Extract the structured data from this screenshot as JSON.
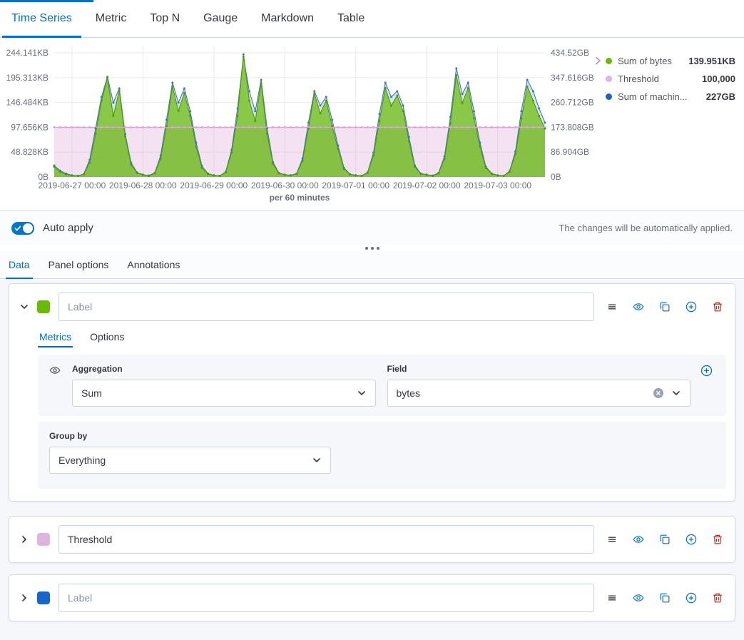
{
  "top_tabs": {
    "items": [
      {
        "label": "Time Series",
        "active": true
      },
      {
        "label": "Metric"
      },
      {
        "label": "Top N"
      },
      {
        "label": "Gauge"
      },
      {
        "label": "Markdown"
      },
      {
        "label": "Table"
      }
    ]
  },
  "chart_data": {
    "type": "area",
    "caption": "per 60 minutes",
    "x_axis": {
      "start_hours": -6,
      "step_hours": 2,
      "domain_hours": [
        -6,
        160
      ],
      "tick_hours": [
        0,
        24,
        48,
        72,
        96,
        120,
        144
      ],
      "tick_labels": [
        "2019-06-27 00:00",
        "2019-06-28 00:00",
        "2019-06-29 00:00",
        "2019-06-30 00:00",
        "2019-07-01 00:00",
        "2019-07-02 00:00",
        "2019-07-03 00:00"
      ]
    },
    "y_left": {
      "unit": "bytes",
      "max_kb": 256.8,
      "tick_values_kb": [
        0,
        48.828,
        97.656,
        146.484,
        195.313,
        244.141
      ],
      "tick_labels": [
        "0B",
        "48.828KB",
        "97.656KB",
        "146.484KB",
        "195.313KB",
        "244.141KB"
      ]
    },
    "y_right": {
      "unit": "bytes",
      "max_gb": 457,
      "tick_values_gb": [
        0,
        86.904,
        173.808,
        260.712,
        347.616,
        434.52
      ],
      "tick_labels": [
        "0B",
        "86.904GB",
        "173.808GB",
        "260.712GB",
        "347.616GB",
        "434.52GB"
      ]
    },
    "series": [
      {
        "name": "Sum of bytes",
        "axis": "left",
        "chart_color": "#68BC00",
        "line_color": "#4F9B00",
        "fill_opacity": 0.7,
        "values_kb": [
          20,
          10,
          5,
          3,
          2,
          5,
          28,
          85,
          150,
          195,
          120,
          170,
          80,
          24,
          8,
          4,
          2,
          7,
          36,
          100,
          178,
          130,
          165,
          120,
          60,
          18,
          6,
          3,
          2,
          9,
          48,
          120,
          241,
          150,
          110,
          185,
          85,
          26,
          7,
          4,
          3,
          6,
          32,
          95,
          164,
          125,
          150,
          100,
          55,
          16,
          5,
          3,
          2,
          8,
          42,
          110,
          175,
          140,
          160,
          130,
          70,
          20,
          6,
          4,
          2,
          7,
          36,
          105,
          200,
          145,
          175,
          115,
          60,
          18,
          6,
          3,
          2,
          10,
          45,
          115,
          178,
          150,
          120,
          95
        ]
      },
      {
        "name": "Threshold",
        "axis": "left",
        "type": "threshold",
        "chart_color": "#DCA4DA",
        "fill_opacity": 0.32,
        "value_kb": 97.656,
        "display_value": "100,000"
      },
      {
        "name": "Sum of machin...",
        "axis": "right",
        "chart_color": "#4A7FD4",
        "line_color": "#3E74C9",
        "fill_opacity": 0.22,
        "values_gb": [
          40,
          22,
          12,
          6,
          4,
          10,
          60,
          170,
          280,
          350,
          260,
          310,
          150,
          50,
          16,
          8,
          5,
          14,
          75,
          200,
          330,
          260,
          310,
          230,
          120,
          38,
          12,
          6,
          4,
          18,
          95,
          240,
          420,
          300,
          230,
          340,
          170,
          52,
          14,
          8,
          6,
          12,
          65,
          190,
          300,
          250,
          280,
          200,
          110,
          32,
          10,
          6,
          4,
          16,
          85,
          220,
          330,
          280,
          300,
          250,
          140,
          40,
          12,
          8,
          5,
          14,
          72,
          210,
          380,
          290,
          330,
          230,
          120,
          36,
          12,
          6,
          4,
          20,
          90,
          230,
          340,
          300,
          240,
          190
        ]
      }
    ]
  },
  "legend": {
    "items": [
      {
        "label": "Sum of bytes",
        "value": "139.951KB",
        "color": "#68BC00"
      },
      {
        "label": "Threshold",
        "value": "100,000",
        "color": "#E0B4E0"
      },
      {
        "label": "Sum of machin...",
        "value": "227GB",
        "color": "#1565CC"
      }
    ]
  },
  "auto_apply": {
    "label": "Auto apply",
    "enabled": true,
    "hint": "The changes will be automatically applied."
  },
  "editor_tabs": {
    "items": [
      {
        "label": "Data",
        "active": true
      },
      {
        "label": "Panel options"
      },
      {
        "label": "Annotations"
      }
    ]
  },
  "series_editors": [
    {
      "color": "#68BC00",
      "label_value": "",
      "label_placeholder": "Label",
      "expanded": true,
      "tabs": [
        {
          "label": "Metrics",
          "active": true
        },
        {
          "label": "Options"
        }
      ],
      "metric_row": {
        "aggregation_label": "Aggregation",
        "aggregation_value": "Sum",
        "field_label": "Field",
        "field_value": "bytes"
      },
      "group_by": {
        "label": "Group by",
        "value": "Everything"
      }
    },
    {
      "color": "#E0B4E0",
      "label_value": "Threshold",
      "label_placeholder": "Label",
      "expanded": false
    },
    {
      "color": "#1565CC",
      "label_value": "",
      "label_placeholder": "Label",
      "expanded": false
    }
  ],
  "colors": {
    "accent": "#0071C2",
    "danger": "#BD271E",
    "toggle_on": "#0077CC",
    "workspace_bg": "#F5F7FA",
    "border": "#D3DAE6"
  }
}
